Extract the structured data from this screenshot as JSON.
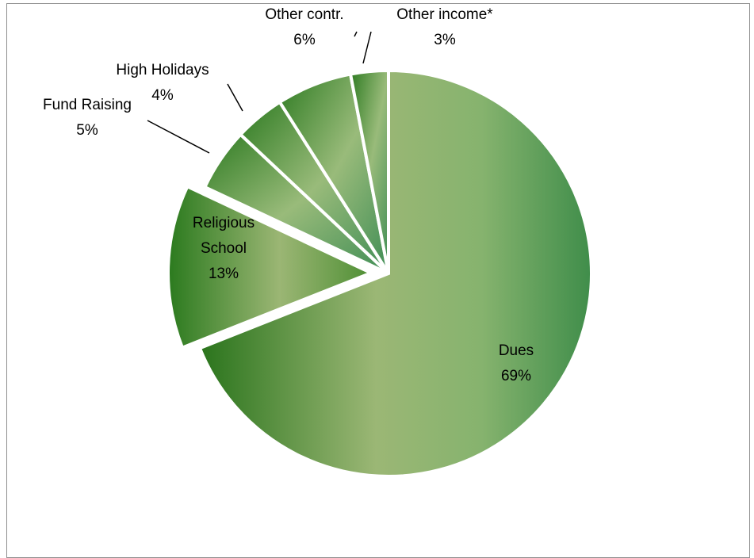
{
  "chart_data": {
    "type": "pie",
    "title": "",
    "slices": [
      {
        "name": "Dues",
        "value": 69,
        "label": "69%",
        "color": "#4f8f35"
      },
      {
        "name": "Religious School",
        "value": 13,
        "label": "13%",
        "color": "#3f8a28"
      },
      {
        "name": "Fund Raising",
        "value": 5,
        "label": "5%",
        "color": "#5c9b46"
      },
      {
        "name": "High Holidays",
        "value": 4,
        "label": "4%",
        "color": "#5aa060"
      },
      {
        "name": "Other contr.",
        "value": 6,
        "label": "6%",
        "color": "#4f9453"
      },
      {
        "name": "Other income*",
        "value": 3,
        "label": "3%",
        "color": "#3f8a40"
      }
    ],
    "exploded": [
      "Dues",
      "Religious School"
    ],
    "legend": "none",
    "data_labels": "category and percentage"
  }
}
